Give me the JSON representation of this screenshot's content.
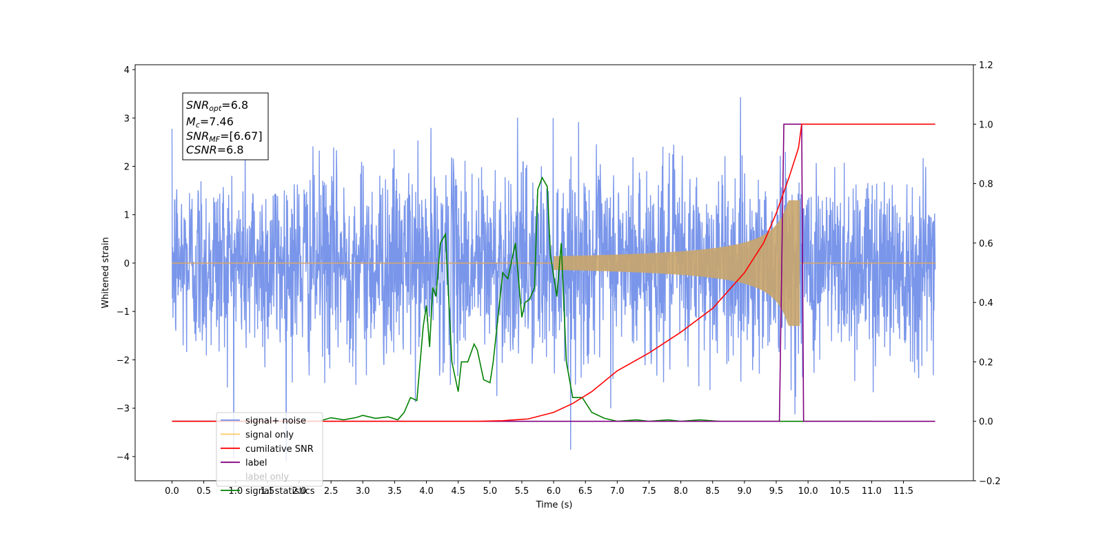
{
  "chart_data": {
    "type": "line",
    "xlabel": "Time (s)",
    "ylabel_left": "Whitened strain",
    "ylabel_right": "",
    "xlim": [
      -0.58,
      12.6
    ],
    "ylim_left": [
      -4.5,
      4.1
    ],
    "ylim_right": [
      -0.2,
      1.2
    ],
    "x_ticks": [
      "0.0",
      "0.5",
      "1.0",
      "1.5",
      "2.0",
      "2.5",
      "3.0",
      "3.5",
      "4.0",
      "4.5",
      "5.0",
      "5.5",
      "6.0",
      "6.5",
      "7.0",
      "7.5",
      "8.0",
      "8.5",
      "9.0",
      "9.5",
      "10.0",
      "10.5",
      "11.0",
      "11.5"
    ],
    "y_ticks_left": [
      4,
      3,
      2,
      1,
      0,
      -1,
      -2,
      -3,
      -4
    ],
    "y_tick_labels_left": [
      "4",
      "3",
      "2",
      "1",
      "0",
      "−1",
      "−2",
      "−3",
      "−4"
    ],
    "y_ticks_right": [
      1.2,
      1.0,
      0.8,
      0.6,
      0.4,
      0.2,
      0.0,
      -0.2
    ],
    "y_tick_labels_right": [
      "1.2",
      "1.0",
      "0.8",
      "0.6",
      "0.4",
      "0.2",
      "0.0",
      "−0.2"
    ],
    "grid": false,
    "legend_placement": "lower-left",
    "annotation": {
      "snr_opt": {
        "main": "SNR",
        "sub": "opt",
        "value": "=6.8"
      },
      "mc": {
        "main": "M",
        "sub": "c",
        "value": "=7.46"
      },
      "snr_mf": {
        "main": "SNR",
        "sub": "MF",
        "value": "=[6.67]"
      },
      "csnr": {
        "main": "CSNR",
        "value": "=6.8"
      }
    },
    "series": [
      {
        "name": "signal+ noise",
        "axis": "left",
        "color": "#4169e1",
        "kind": "gaussian-noise",
        "x_range": [
          0,
          12.0
        ],
        "std": 1.0,
        "max": 3.68,
        "min": -4.1
      },
      {
        "name": "signal only",
        "axis": "left",
        "color": "#ffa500",
        "kind": "chirp",
        "x_range": [
          0,
          12.0
        ],
        "start": 6.0,
        "merger": 9.87,
        "peak_amplitude": 1.3
      },
      {
        "name": "cumilative SNR",
        "axis": "right",
        "color": "#ff0000",
        "x": [
          0,
          4.8,
          5.2,
          5.6,
          6.0,
          6.3,
          6.6,
          7.0,
          7.5,
          8.0,
          8.5,
          9.0,
          9.3,
          9.5,
          9.7,
          9.85,
          9.9,
          9.95,
          12.0
        ],
        "y": [
          0.0,
          0.0,
          0.002,
          0.008,
          0.03,
          0.06,
          0.1,
          0.17,
          0.23,
          0.3,
          0.38,
          0.5,
          0.6,
          0.7,
          0.82,
          0.92,
          1.0,
          1.0,
          1.0
        ]
      },
      {
        "name": "label",
        "axis": "right",
        "color": "#800080",
        "x": [
          0,
          9.55,
          9.62,
          9.9,
          9.93,
          12.0
        ],
        "y": [
          0.0,
          0.0,
          1.0,
          1.0,
          0.0,
          0.0
        ]
      },
      {
        "name": "label only",
        "axis": "right",
        "color": "#d8bfd8",
        "hidden": true
      },
      {
        "name": "signal statistics",
        "axis": "right",
        "color": "#008000",
        "x": [
          0,
          2.3,
          2.5,
          2.7,
          2.9,
          3.0,
          3.2,
          3.4,
          3.55,
          3.65,
          3.75,
          3.85,
          3.95,
          4.0,
          4.05,
          4.1,
          4.15,
          4.22,
          4.3,
          4.4,
          4.5,
          4.55,
          4.65,
          4.75,
          4.8,
          4.9,
          5.0,
          5.05,
          5.15,
          5.2,
          5.28,
          5.35,
          5.4,
          5.5,
          5.55,
          5.62,
          5.7,
          5.75,
          5.82,
          5.9,
          5.95,
          6.05,
          6.12,
          6.2,
          6.3,
          6.45,
          6.6,
          6.8,
          7.0,
          7.3,
          7.5,
          7.8,
          8.0,
          8.3,
          8.6,
          11.0
        ],
        "y": [
          0.0,
          0.0,
          0.012,
          0.005,
          0.013,
          0.02,
          0.01,
          0.015,
          0.005,
          0.03,
          0.08,
          0.07,
          0.32,
          0.39,
          0.25,
          0.45,
          0.42,
          0.6,
          0.63,
          0.2,
          0.1,
          0.2,
          0.2,
          0.26,
          0.24,
          0.14,
          0.13,
          0.2,
          0.4,
          0.5,
          0.48,
          0.55,
          0.6,
          0.35,
          0.4,
          0.41,
          0.45,
          0.78,
          0.82,
          0.79,
          0.56,
          0.42,
          0.6,
          0.2,
          0.08,
          0.08,
          0.03,
          0.01,
          0.0,
          0.005,
          0.0,
          0.005,
          0.0,
          0.005,
          0.0,
          0.0
        ]
      }
    ]
  }
}
